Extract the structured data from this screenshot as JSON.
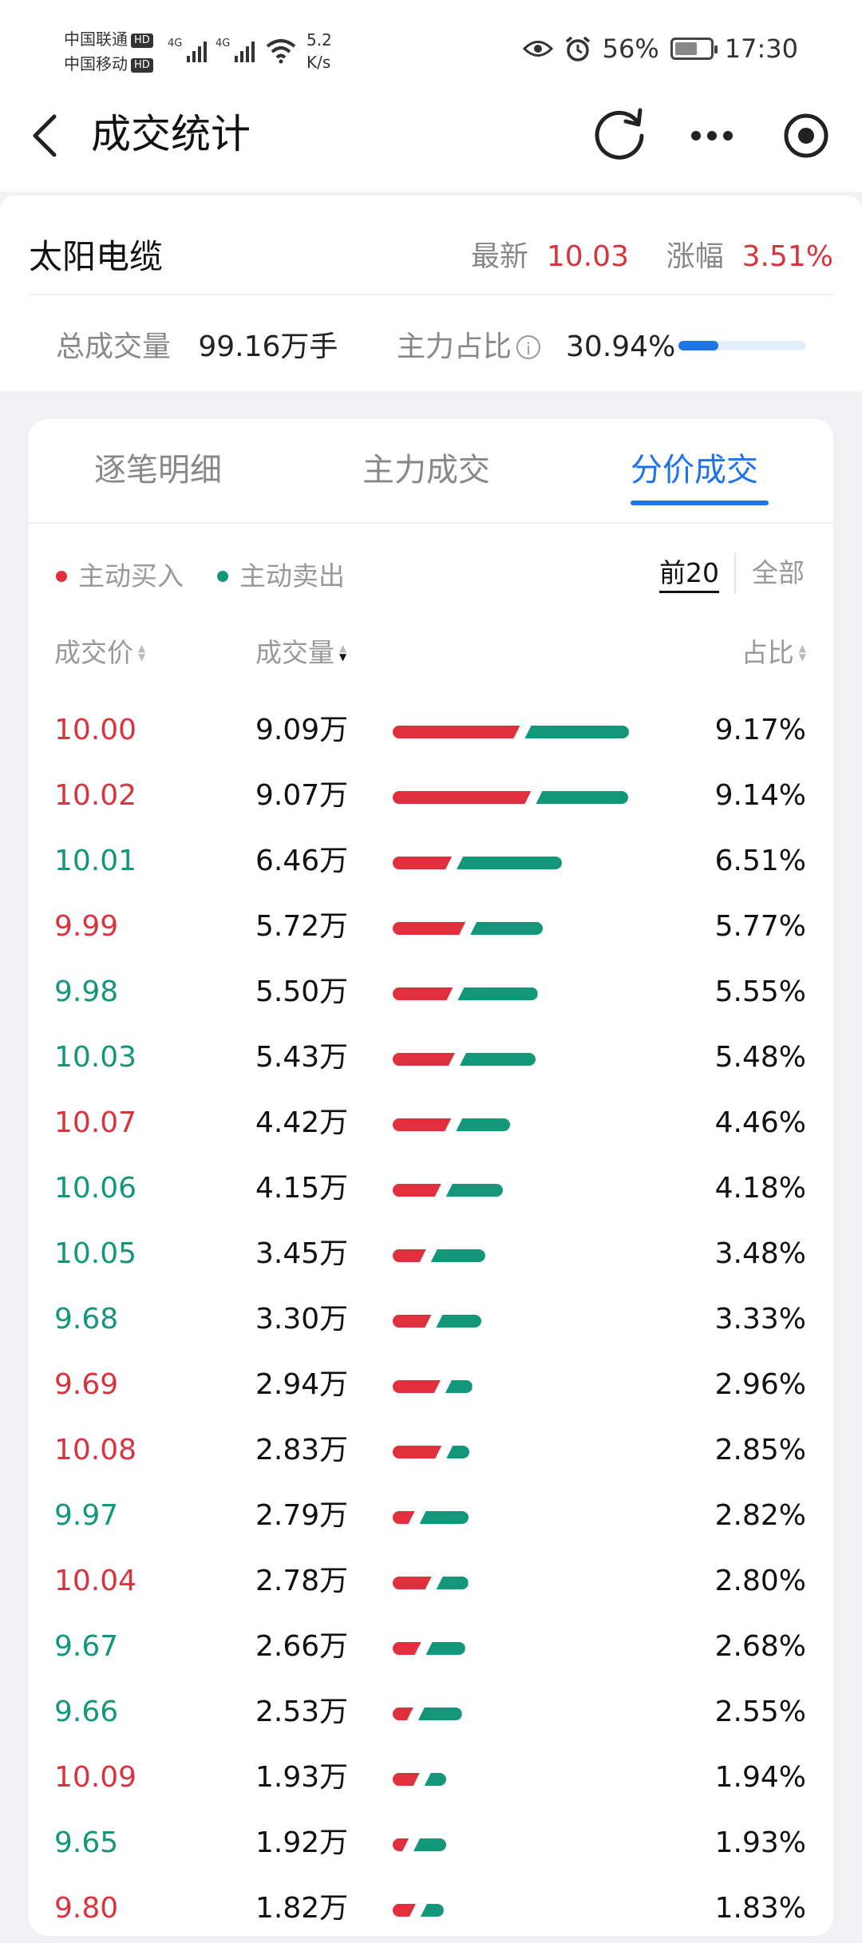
{
  "status_bar": {
    "carrier1": "中国联通",
    "carrier2": "中国移动",
    "hd": "HD",
    "net": "4G",
    "speed_value": "5.2",
    "speed_unit": "K/s",
    "battery": "56%",
    "time": "17:30"
  },
  "nav": {
    "title": "成交统计"
  },
  "stock": {
    "name": "太阳电缆",
    "latest_label": "最新",
    "latest_value": "10.03",
    "change_label": "涨幅",
    "change_value": "3.51%",
    "volume_label": "总成交量",
    "volume_value": "99.16万手",
    "main_ratio_label": "主力占比",
    "main_ratio_value": "30.94%",
    "main_ratio_fraction": 0.31
  },
  "tabs": [
    "逐笔明细",
    "主力成交",
    "分价成交"
  ],
  "active_tab": 2,
  "legend": {
    "buy": "主动买入",
    "sell": "主动卖出",
    "buy_color": "#e0303e",
    "sell_color": "#13967a"
  },
  "filters": [
    "前20",
    "全部"
  ],
  "active_filter": 0,
  "columns": {
    "price": "成交价",
    "volume": "成交量",
    "ratio": "占比"
  },
  "rows": [
    {
      "price": "10.00",
      "color": "red",
      "volume": "9.09万",
      "pct": "9.17%",
      "buy": 0.55,
      "sell": 0.45
    },
    {
      "price": "10.02",
      "color": "red",
      "volume": "9.07万",
      "pct": "9.14%",
      "buy": 0.6,
      "sell": 0.4
    },
    {
      "price": "10.01",
      "color": "green",
      "volume": "6.46万",
      "pct": "6.51%",
      "buy": 0.36,
      "sell": 0.64
    },
    {
      "price": "9.99",
      "color": "red",
      "volume": "5.72万",
      "pct": "5.77%",
      "buy": 0.5,
      "sell": 0.5
    },
    {
      "price": "9.98",
      "color": "green",
      "volume": "5.50万",
      "pct": "5.55%",
      "buy": 0.43,
      "sell": 0.57
    },
    {
      "price": "10.03",
      "color": "green",
      "volume": "5.43万",
      "pct": "5.48%",
      "buy": 0.45,
      "sell": 0.55
    },
    {
      "price": "10.07",
      "color": "red",
      "volume": "4.42万",
      "pct": "4.46%",
      "buy": 0.52,
      "sell": 0.48
    },
    {
      "price": "10.06",
      "color": "green",
      "volume": "4.15万",
      "pct": "4.18%",
      "buy": 0.46,
      "sell": 0.54
    },
    {
      "price": "10.05",
      "color": "green",
      "volume": "3.45万",
      "pct": "3.48%",
      "buy": 0.38,
      "sell": 0.62
    },
    {
      "price": "9.68",
      "color": "green",
      "volume": "3.30万",
      "pct": "3.33%",
      "buy": 0.46,
      "sell": 0.54
    },
    {
      "price": "9.69",
      "color": "red",
      "volume": "2.94万",
      "pct": "2.96%",
      "buy": 0.64,
      "sell": 0.36
    },
    {
      "price": "10.08",
      "color": "red",
      "volume": "2.83万",
      "pct": "2.85%",
      "buy": 0.68,
      "sell": 0.32
    },
    {
      "price": "9.97",
      "color": "green",
      "volume": "2.79万",
      "pct": "2.82%",
      "buy": 0.31,
      "sell": 0.69
    },
    {
      "price": "10.04",
      "color": "red",
      "volume": "2.78万",
      "pct": "2.80%",
      "buy": 0.55,
      "sell": 0.45
    },
    {
      "price": "9.67",
      "color": "green",
      "volume": "2.66万",
      "pct": "2.68%",
      "buy": 0.42,
      "sell": 0.58
    },
    {
      "price": "9.66",
      "color": "green",
      "volume": "2.53万",
      "pct": "2.55%",
      "buy": 0.32,
      "sell": 0.68
    },
    {
      "price": "10.09",
      "color": "red",
      "volume": "1.93万",
      "pct": "1.94%",
      "buy": 0.55,
      "sell": 0.45
    },
    {
      "price": "9.65",
      "color": "green",
      "volume": "1.92万",
      "pct": "1.93%",
      "buy": 0.33,
      "sell": 0.67
    },
    {
      "price": "9.80",
      "color": "red",
      "volume": "1.82万",
      "pct": "1.83%",
      "buy": 0.5,
      "sell": 0.5
    }
  ]
}
